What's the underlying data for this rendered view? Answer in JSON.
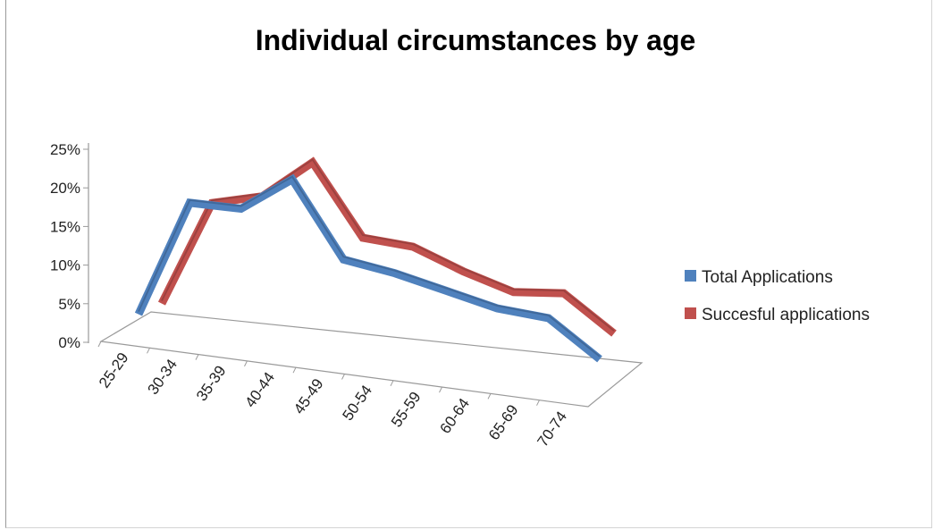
{
  "chart_data": {
    "type": "line",
    "title": "Individual  circumstances  by age",
    "categories": [
      "25-29",
      "30-34",
      "35-39",
      "40-44",
      "45-49",
      "50-54",
      "55-59",
      "60-64",
      "65-69",
      "70-74"
    ],
    "y_tick_labels": [
      "0%",
      "5%",
      "10%",
      "15%",
      "20%",
      "25%"
    ],
    "ylim": [
      0,
      25
    ],
    "grid": false,
    "legend_position": "right",
    "series": [
      {
        "name": "Total Applications",
        "color": "#4f81bd",
        "values": [
          0.5,
          15.5,
          15.5,
          20.0,
          10.5,
          9.5,
          8.0,
          6.5,
          6.0,
          1.5
        ]
      },
      {
        "name": "Succesful applications",
        "color": "#c0504d",
        "values": [
          0.5,
          14.0,
          15.5,
          20.5,
          11.5,
          11.0,
          8.5,
          6.5,
          7.0,
          2.5
        ]
      }
    ]
  }
}
